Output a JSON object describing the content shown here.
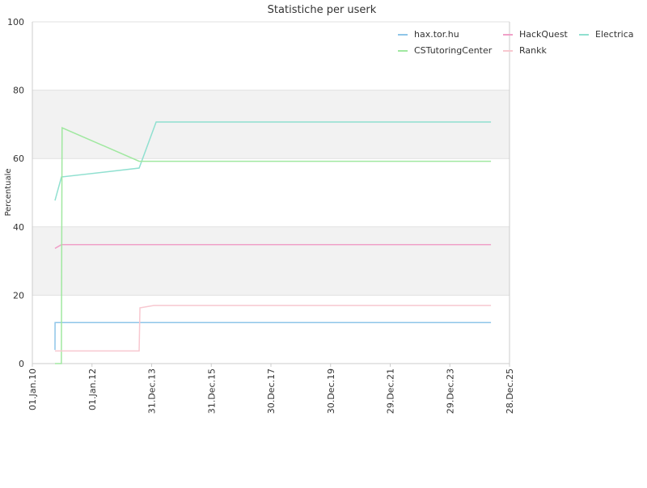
{
  "chart_data": {
    "type": "line",
    "title": "Statistiche per userk",
    "y_label": "Percentuale",
    "ylim": [
      0,
      100
    ],
    "yticks": [
      0,
      20,
      40,
      60,
      80,
      100
    ],
    "xlim": [
      "2010-01-01",
      "2025-12-28"
    ],
    "xticks": [
      {
        "value": "2010-01-01",
        "label": "01.Jan.10"
      },
      {
        "value": "2012-01-01",
        "label": "01.Jan.12"
      },
      {
        "value": "2013-12-31",
        "label": "31.Dec.13"
      },
      {
        "value": "2015-12-31",
        "label": "31.Dec.15"
      },
      {
        "value": "2017-12-30",
        "label": "30.Dec.17"
      },
      {
        "value": "2019-12-30",
        "label": "30.Dec.19"
      },
      {
        "value": "2021-12-29",
        "label": "29.Dec.21"
      },
      {
        "value": "2023-12-29",
        "label": "29.Dec.23"
      },
      {
        "value": "2025-12-28",
        "label": "28.Dec.25"
      }
    ],
    "grid": true,
    "legend": "top-right",
    "series": [
      {
        "name": "hax.tor.hu",
        "color": "#8ec5e8",
        "x": [
          "2010-10-05",
          "2010-10-06",
          "2025-05-15"
        ],
        "values": [
          4,
          12,
          12
        ]
      },
      {
        "name": "HackQuest",
        "color": "#f0a0c8",
        "x": [
          "2010-10-05",
          "2010-12-23",
          "2025-05-15"
        ],
        "values": [
          33.7,
          34.8,
          34.8
        ]
      },
      {
        "name": "Electrica",
        "color": "#90e0d0",
        "x": [
          "2010-10-05",
          "2010-12-23",
          "2013-07-31",
          "2014-02-24",
          "2025-05-15"
        ],
        "values": [
          47.7,
          54.6,
          57.2,
          70.7,
          70.7
        ]
      },
      {
        "name": "CSTutoringCenter",
        "color": "#a0e8a0",
        "x": [
          "2010-10-05",
          "2010-12-22",
          "2010-12-31",
          "2013-07-31",
          "2025-05-15"
        ],
        "values": [
          0,
          0,
          69,
          59.2,
          59.2
        ]
      },
      {
        "name": "Rankk",
        "color": "#f8c8d0",
        "x": [
          "2010-10-05",
          "2013-07-31",
          "2013-08-10",
          "2014-01-25",
          "2025-05-15"
        ],
        "values": [
          3.7,
          3.7,
          16.3,
          17,
          17
        ]
      }
    ]
  }
}
